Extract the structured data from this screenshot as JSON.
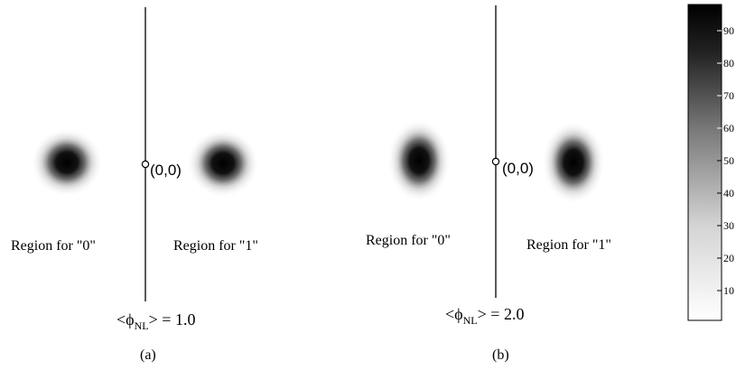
{
  "panels": [
    {
      "id": "a",
      "caption": "(a)",
      "origin_label": "(0,0)",
      "region_left": "Region for \"0\"",
      "region_right": "Region for \"1\"",
      "phase_label": {
        "prefix": "<",
        "symbol": "ϕ",
        "subscript": "NL",
        "suffix": "> = 1.0"
      }
    },
    {
      "id": "b",
      "caption": "(b)",
      "origin_label": "(0,0)",
      "region_left": "Region for \"0\"",
      "region_right": "Region for \"1\"",
      "phase_label": {
        "prefix": "<",
        "symbol": "ϕ",
        "subscript": "NL",
        "suffix": "> = 2.0"
      }
    }
  ],
  "colorbar": {
    "ticks": [
      "10",
      "20",
      "30",
      "40",
      "50",
      "60",
      "70",
      "80",
      "90"
    ],
    "color_high": "#000000",
    "color_low": "#ffffff"
  }
}
